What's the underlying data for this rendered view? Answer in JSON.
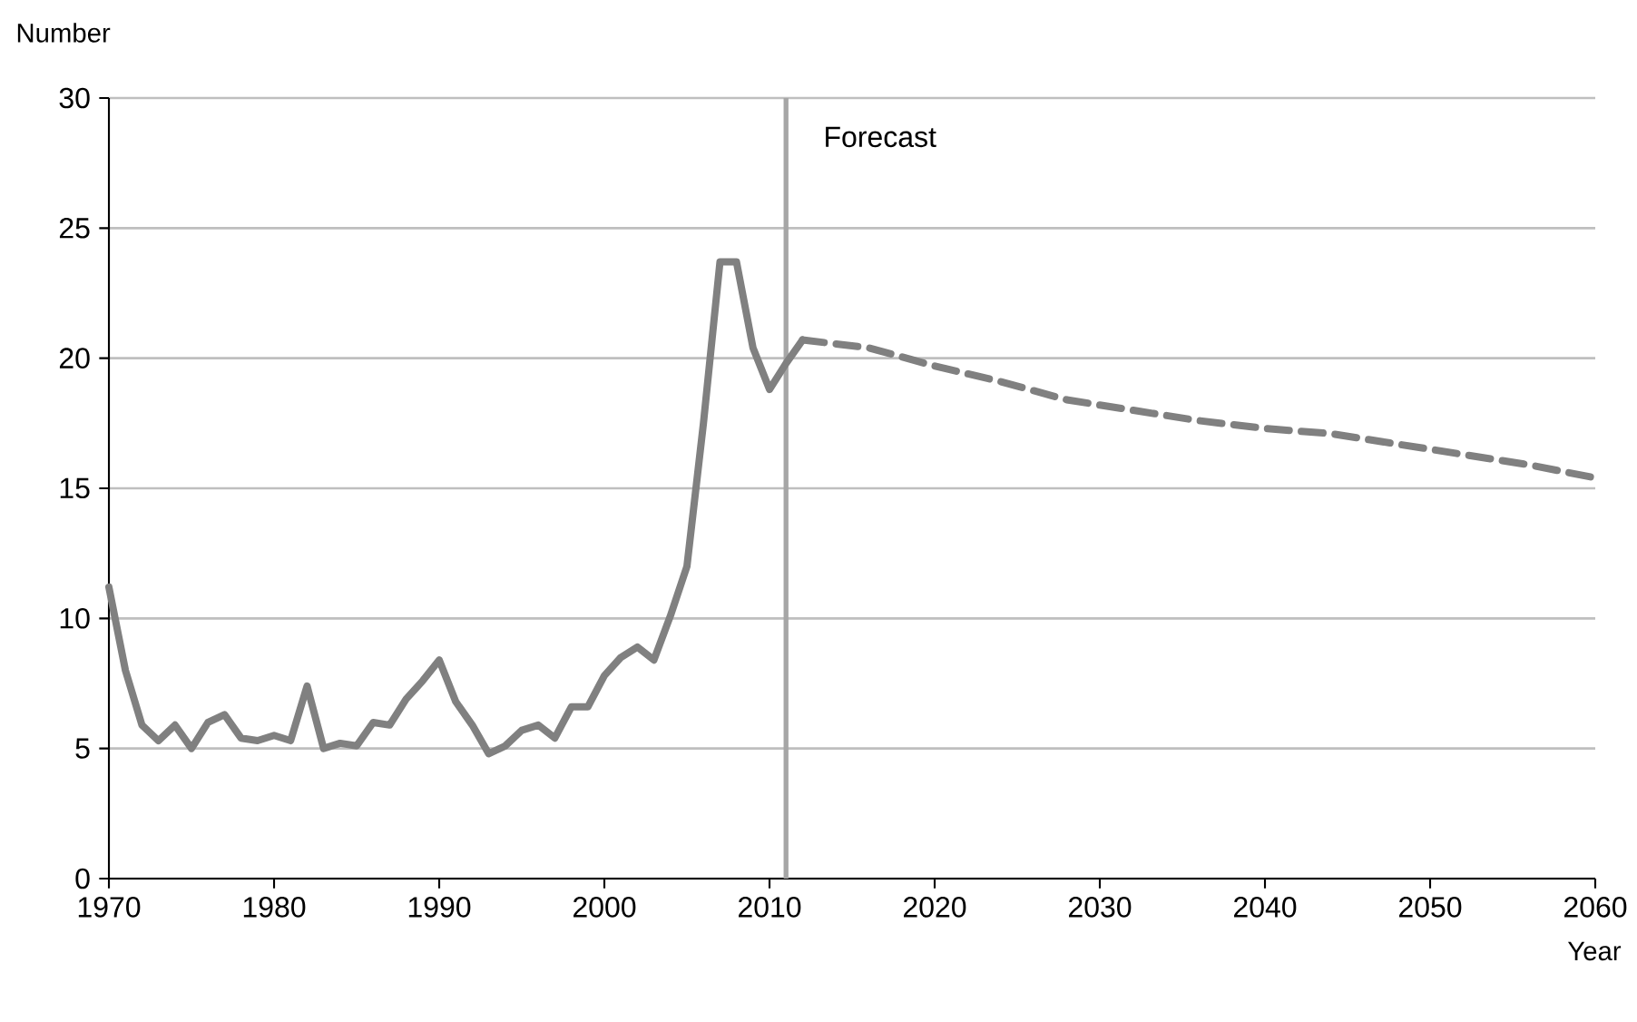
{
  "chart_data": {
    "type": "line",
    "xlabel": "Year",
    "ylabel": "Number",
    "xlim": [
      1970,
      2060
    ],
    "xticks": [
      1970,
      1980,
      1990,
      2000,
      2010,
      2020,
      2030,
      2040,
      2050,
      2060
    ],
    "ylim": [
      0,
      30
    ],
    "yticks": [
      0,
      5,
      10,
      15,
      20,
      25,
      30
    ],
    "grid": "y",
    "ref_lines": [
      {
        "axis": "x",
        "value": 2011,
        "color": "#a6a6a6"
      }
    ],
    "annotations": [
      "Forecast"
    ],
    "series": [
      {
        "color": "#808080",
        "line_style": "solid",
        "x": [
          1970,
          1971,
          1972,
          1973,
          1974,
          1975,
          1976,
          1977,
          1978,
          1979,
          1980,
          1981,
          1982,
          1983,
          1984,
          1985,
          1986,
          1987,
          1988,
          1989,
          1990,
          1991,
          1992,
          1993,
          1994,
          1995,
          1996,
          1997,
          1998,
          1999,
          2000,
          2001,
          2002,
          2003,
          2004,
          2005,
          2006,
          2007,
          2008,
          2009,
          2010,
          2011,
          2012
        ],
        "values": [
          11.2,
          8.0,
          5.9,
          5.3,
          5.9,
          5.0,
          6.0,
          6.3,
          5.4,
          5.3,
          5.5,
          5.3,
          7.4,
          5.0,
          5.2,
          5.1,
          6.0,
          5.9,
          6.9,
          7.6,
          8.4,
          6.8,
          5.9,
          4.8,
          5.1,
          5.7,
          5.9,
          5.4,
          6.6,
          6.6,
          7.8,
          8.5,
          8.9,
          8.4,
          10.1,
          12.0,
          17.5,
          23.7,
          23.7,
          20.4,
          18.8,
          19.8,
          20.7
        ]
      },
      {
        "color": "#808080",
        "line_style": "dashed",
        "x": [
          2012,
          2016,
          2020,
          2024,
          2028,
          2032,
          2036,
          2040,
          2044,
          2048,
          2052,
          2056,
          2060
        ],
        "values": [
          20.7,
          20.4,
          19.7,
          19.1,
          18.4,
          18.0,
          17.6,
          17.3,
          17.1,
          16.7,
          16.3,
          15.9,
          15.4
        ]
      }
    ]
  }
}
